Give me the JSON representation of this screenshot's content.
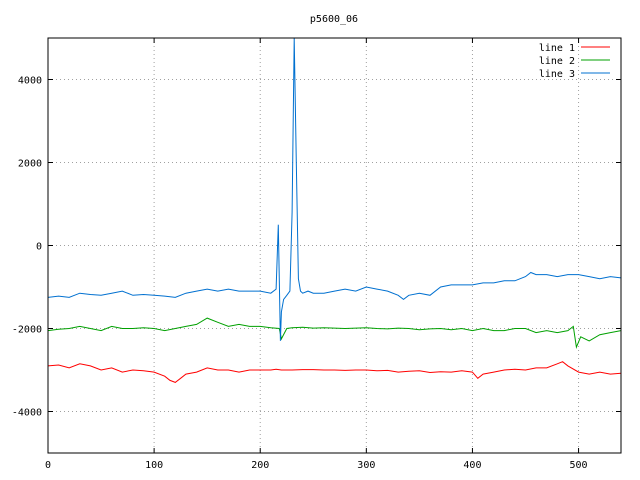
{
  "chart_data": {
    "type": "line",
    "title": "p5600_06",
    "xlabel": "",
    "ylabel": "",
    "xlim": [
      0,
      540
    ],
    "ylim": [
      -5000,
      5000
    ],
    "xticks": [
      0,
      100,
      200,
      300,
      400,
      500
    ],
    "yticks": [
      -4000,
      -2000,
      0,
      2000,
      4000
    ],
    "grid": true,
    "legend_position": "top-right",
    "series": [
      {
        "name": "line 1",
        "color": "#ff0000",
        "x": [
          0,
          10,
          20,
          30,
          40,
          50,
          60,
          70,
          80,
          90,
          100,
          110,
          115,
          120,
          125,
          130,
          140,
          150,
          160,
          170,
          180,
          190,
          200,
          210,
          215,
          220,
          230,
          240,
          250,
          260,
          270,
          280,
          290,
          300,
          310,
          320,
          330,
          340,
          350,
          360,
          370,
          380,
          390,
          400,
          405,
          410,
          420,
          430,
          440,
          450,
          460,
          470,
          480,
          485,
          490,
          500,
          510,
          520,
          530,
          540
        ],
        "values": [
          -2900,
          -2880,
          -2950,
          -2850,
          -2900,
          -3000,
          -2950,
          -3050,
          -3000,
          -3020,
          -3050,
          -3150,
          -3250,
          -3300,
          -3200,
          -3100,
          -3050,
          -2950,
          -3000,
          -3000,
          -3050,
          -3000,
          -3000,
          -3000,
          -2980,
          -3000,
          -3000,
          -2990,
          -2990,
          -3000,
          -3000,
          -3010,
          -3000,
          -3000,
          -3020,
          -3010,
          -3050,
          -3030,
          -3020,
          -3060,
          -3040,
          -3050,
          -3020,
          -3050,
          -3200,
          -3100,
          -3050,
          -3000,
          -2980,
          -3000,
          -2950,
          -2950,
          -2850,
          -2800,
          -2900,
          -3050,
          -3100,
          -3050,
          -3100,
          -3080
        ]
      },
      {
        "name": "line 2",
        "color": "#00a000",
        "x": [
          0,
          10,
          20,
          30,
          40,
          50,
          60,
          70,
          80,
          90,
          100,
          110,
          120,
          130,
          140,
          150,
          160,
          170,
          180,
          190,
          200,
          210,
          218,
          220,
          225,
          230,
          240,
          250,
          260,
          270,
          280,
          290,
          300,
          310,
          320,
          330,
          340,
          350,
          360,
          370,
          380,
          390,
          400,
          410,
          420,
          430,
          440,
          450,
          460,
          470,
          480,
          490,
          495,
          498,
          502,
          510,
          520,
          530,
          540
        ],
        "values": [
          -2050,
          -2020,
          -2000,
          -1950,
          -2000,
          -2050,
          -1950,
          -2000,
          -2000,
          -1980,
          -2000,
          -2050,
          -2000,
          -1950,
          -1900,
          -1750,
          -1850,
          -1950,
          -1900,
          -1950,
          -1950,
          -1980,
          -2000,
          -2250,
          -2000,
          -1980,
          -1970,
          -1990,
          -1980,
          -1990,
          -2000,
          -1990,
          -1980,
          -2000,
          -2010,
          -1990,
          -2000,
          -2030,
          -2010,
          -2000,
          -2030,
          -2000,
          -2050,
          -2000,
          -2050,
          -2050,
          -2000,
          -2000,
          -2100,
          -2050,
          -2100,
          -2050,
          -1950,
          -2450,
          -2200,
          -2300,
          -2150,
          -2100,
          -2050
        ]
      },
      {
        "name": "line 3",
        "color": "#0070d0",
        "x": [
          0,
          10,
          20,
          30,
          40,
          50,
          60,
          70,
          80,
          90,
          100,
          110,
          120,
          130,
          140,
          150,
          160,
          170,
          180,
          190,
          200,
          210,
          215,
          217,
          219,
          220,
          222,
          225,
          228,
          230,
          232,
          234,
          236,
          238,
          240,
          245,
          250,
          260,
          270,
          280,
          290,
          300,
          310,
          320,
          330,
          335,
          340,
          350,
          360,
          370,
          380,
          390,
          400,
          410,
          420,
          430,
          440,
          450,
          455,
          460,
          470,
          480,
          490,
          500,
          510,
          520,
          530,
          540
        ],
        "values": [
          -1250,
          -1220,
          -1250,
          -1150,
          -1180,
          -1200,
          -1150,
          -1100,
          -1200,
          -1180,
          -1200,
          -1220,
          -1250,
          -1150,
          -1100,
          -1050,
          -1100,
          -1050,
          -1100,
          -1100,
          -1100,
          -1150,
          -1050,
          500,
          -2300,
          -1600,
          -1300,
          -1200,
          -1100,
          800,
          5000,
          2000,
          -800,
          -1100,
          -1150,
          -1100,
          -1150,
          -1150,
          -1100,
          -1050,
          -1100,
          -1000,
          -1050,
          -1100,
          -1200,
          -1300,
          -1200,
          -1150,
          -1200,
          -1000,
          -950,
          -950,
          -950,
          -900,
          -900,
          -850,
          -850,
          -750,
          -650,
          -700,
          -700,
          -750,
          -700,
          -700,
          -750,
          -800,
          -750,
          -780
        ]
      }
    ]
  }
}
